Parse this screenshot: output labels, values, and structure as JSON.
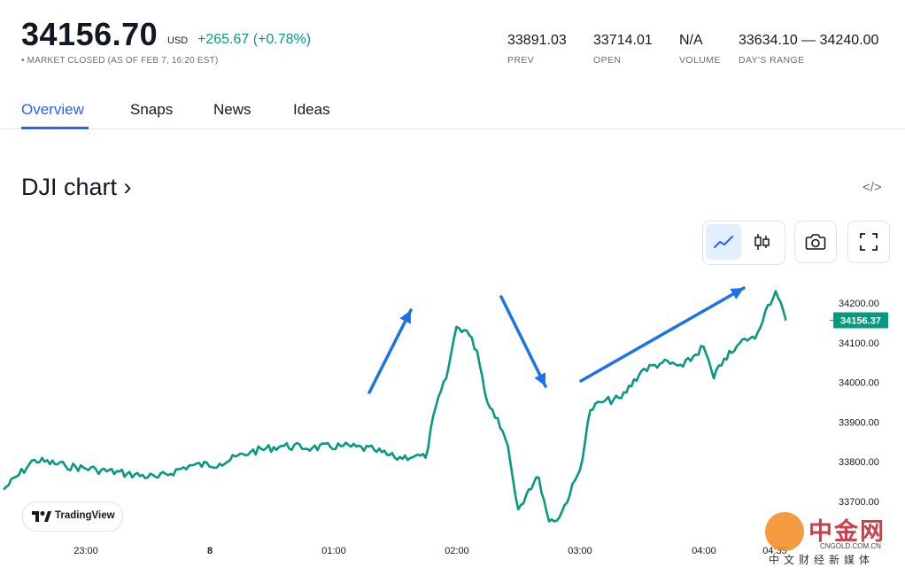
{
  "quote": {
    "price": "34156.70",
    "currency": "USD",
    "change": "+265.67",
    "change_pct": "(+0.78%)",
    "status": "• MARKET CLOSED (AS OF FEB 7, 16:20 EST)"
  },
  "stats": [
    {
      "value": "33891.03",
      "label": "PREV"
    },
    {
      "value": "33714.01",
      "label": "OPEN"
    },
    {
      "value": "N/A",
      "label": "VOLUME"
    },
    {
      "value": "33634.10 — 34240.00",
      "label": "DAY'S RANGE"
    }
  ],
  "tabs": [
    {
      "label": "Overview",
      "active": true
    },
    {
      "label": "Snaps",
      "active": false
    },
    {
      "label": "News",
      "active": false
    },
    {
      "label": "Ideas",
      "active": false
    }
  ],
  "chart_title": "DJI chart ›",
  "embed_glyph": "</>",
  "toolbar": {
    "icons": [
      "line-chart-icon",
      "candlestick-icon",
      "camera-icon",
      "fullscreen-icon"
    ]
  },
  "tradingview_label": "TradingView",
  "colors": {
    "accent": "#2962ff",
    "up": "#089981",
    "annotation": "#1a73e8",
    "line": "#089981"
  },
  "chart_data": {
    "type": "line",
    "title": "",
    "xlabel": "",
    "ylabel": "",
    "x_ticks": [
      "23:00",
      "8",
      "01:00",
      "02:00",
      "03:00",
      "04:00",
      "04:35"
    ],
    "y_ticks": [
      "33700.00",
      "33800.00",
      "33900.00",
      "34000.00",
      "34100.00",
      "34200.00"
    ],
    "ylim": [
      33630,
      34245
    ],
    "last_value": "34156.37",
    "series": [
      {
        "x": [
          "22:20",
          "22:35",
          "22:50",
          "23:05",
          "23:20",
          "23:35",
          "23:50",
          "00:05",
          "00:20",
          "00:35",
          "00:50",
          "01:05",
          "01:20",
          "01:30",
          "01:40",
          "01:45",
          "01:50",
          "01:55",
          "02:00",
          "02:05",
          "02:10",
          "02:15",
          "02:20",
          "02:25",
          "02:30",
          "02:35",
          "02:40",
          "02:45",
          "02:50",
          "03:00",
          "03:05",
          "03:10",
          "03:20",
          "03:30",
          "03:40",
          "03:50",
          "04:00",
          "04:05",
          "04:10",
          "04:15",
          "04:20",
          "04:25",
          "04:30",
          "04:35",
          "04:40"
        ],
        "values": [
          33730,
          33805,
          33790,
          33780,
          33770,
          33760,
          33790,
          33795,
          33825,
          33840,
          33835,
          33840,
          33830,
          33810,
          33815,
          33810,
          33940,
          34010,
          34140,
          34130,
          34080,
          33950,
          33910,
          33840,
          33680,
          33730,
          33760,
          33650,
          33660,
          33780,
          33930,
          33950,
          33960,
          34030,
          34050,
          34040,
          34090,
          34010,
          34060,
          34080,
          34110,
          34110,
          34180,
          34230,
          34156
        ]
      }
    ],
    "annotations": [
      "arrow-up",
      "arrow-down",
      "arrow-up"
    ]
  },
  "watermark": {
    "brand": "中金网",
    "domain": "CNGOLD.COM.CN",
    "sub": "中文财经新媒体"
  }
}
